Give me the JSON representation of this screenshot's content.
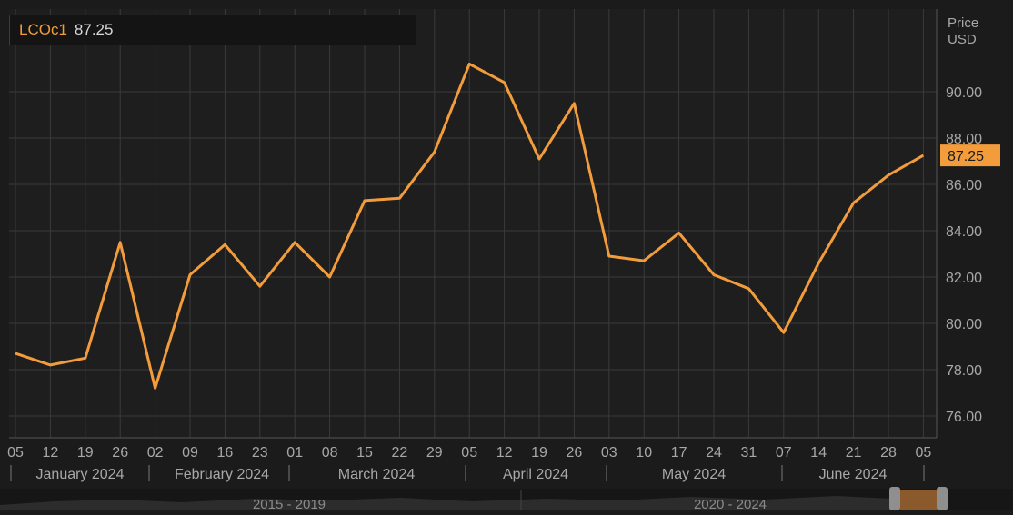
{
  "legend": {
    "symbol": "LCOc1",
    "value": "87.25"
  },
  "axis": {
    "unit_line1": "Price",
    "unit_line2": "USD"
  },
  "last_price_label": "87.25",
  "month_labels": [
    "January 2024",
    "February 2024",
    "March 2024",
    "April 2024",
    "May 2024",
    "June 2024"
  ],
  "navigator": {
    "labels": [
      "2015 - 2019",
      "2020 - 2024"
    ]
  },
  "colors": {
    "line": "#f39c3c",
    "background": "#1b1b1b",
    "grid": "#3a3a3a",
    "axis_text": "#a8a8a8",
    "navigator_handle": "#8a5a2c"
  },
  "chart_data": {
    "type": "line",
    "title": "",
    "xlabel": "",
    "ylabel": "Price USD",
    "x": [
      "05",
      "12",
      "19",
      "26",
      "02",
      "09",
      "16",
      "23",
      "01",
      "08",
      "15",
      "22",
      "29",
      "05",
      "12",
      "19",
      "26",
      "03",
      "10",
      "17",
      "24",
      "31",
      "07",
      "14",
      "21",
      "28",
      "05"
    ],
    "series": [
      {
        "name": "LCOc1",
        "values": [
          78.7,
          78.2,
          78.5,
          83.5,
          77.2,
          82.1,
          83.4,
          81.6,
          83.5,
          82.0,
          85.3,
          85.4,
          87.4,
          91.2,
          90.4,
          87.1,
          89.5,
          82.9,
          82.7,
          83.9,
          82.1,
          81.5,
          79.6,
          82.6,
          85.2,
          86.4,
          87.25
        ]
      }
    ],
    "ylim": [
      75,
      93
    ],
    "yticks": [
      "76.00",
      "78.00",
      "80.00",
      "82.00",
      "84.00",
      "86.00",
      "88.00",
      "90.00"
    ],
    "grid": true,
    "legend": "top-left"
  }
}
